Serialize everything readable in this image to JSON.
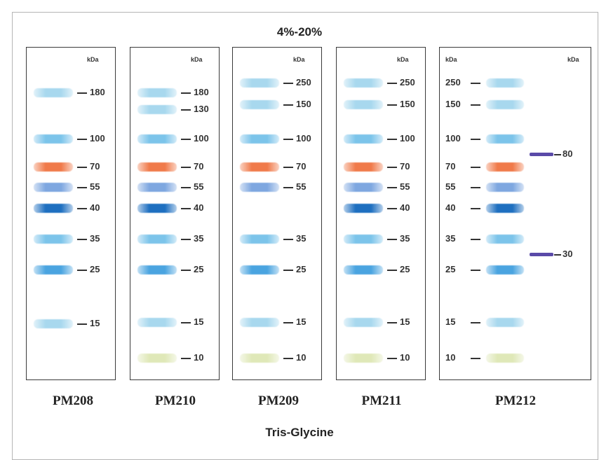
{
  "title": "4%-20%",
  "footer": "Tris-Glycine",
  "unit_label": "kDa",
  "colors": {
    "pale_blue": "#a8d8ee",
    "light_blue": "#7cc4ea",
    "mid_blue": "#4aa4e0",
    "dark_blue": "#1e6fc0",
    "periwinkle": "#7ea7e0",
    "orange": "#f07a4a",
    "yellow_green": "#dfe8b8",
    "purple": "#5a4aa8"
  },
  "panels": [
    {
      "name": "PM208",
      "bands": [
        {
          "kda": "180",
          "color": "pale_blue"
        },
        {
          "kda": "100",
          "color": "light_blue"
        },
        {
          "kda": "70",
          "color": "orange"
        },
        {
          "kda": "55",
          "color": "periwinkle"
        },
        {
          "kda": "40",
          "color": "dark_blue"
        },
        {
          "kda": "35",
          "color": "light_blue"
        },
        {
          "kda": "25",
          "color": "mid_blue"
        },
        {
          "kda": "15",
          "color": "pale_blue"
        }
      ]
    },
    {
      "name": "PM210",
      "bands": [
        {
          "kda": "180",
          "color": "pale_blue"
        },
        {
          "kda": "130",
          "color": "pale_blue"
        },
        {
          "kda": "100",
          "color": "light_blue"
        },
        {
          "kda": "70",
          "color": "orange"
        },
        {
          "kda": "55",
          "color": "periwinkle"
        },
        {
          "kda": "40",
          "color": "dark_blue"
        },
        {
          "kda": "35",
          "color": "light_blue"
        },
        {
          "kda": "25",
          "color": "mid_blue"
        },
        {
          "kda": "15",
          "color": "pale_blue"
        },
        {
          "kda": "10",
          "color": "yellow_green"
        }
      ]
    },
    {
      "name": "PM209",
      "bands": [
        {
          "kda": "250",
          "color": "pale_blue"
        },
        {
          "kda": "150",
          "color": "pale_blue"
        },
        {
          "kda": "100",
          "color": "light_blue"
        },
        {
          "kda": "70",
          "color": "orange"
        },
        {
          "kda": "55",
          "color": "periwinkle"
        },
        {
          "kda": "35",
          "color": "light_blue"
        },
        {
          "kda": "25",
          "color": "mid_blue"
        },
        {
          "kda": "15",
          "color": "pale_blue"
        },
        {
          "kda": "10",
          "color": "yellow_green"
        }
      ]
    },
    {
      "name": "PM211",
      "bands": [
        {
          "kda": "250",
          "color": "pale_blue"
        },
        {
          "kda": "150",
          "color": "pale_blue"
        },
        {
          "kda": "100",
          "color": "light_blue"
        },
        {
          "kda": "70",
          "color": "orange"
        },
        {
          "kda": "55",
          "color": "periwinkle"
        },
        {
          "kda": "40",
          "color": "dark_blue"
        },
        {
          "kda": "35",
          "color": "light_blue"
        },
        {
          "kda": "25",
          "color": "mid_blue"
        },
        {
          "kda": "15",
          "color": "pale_blue"
        },
        {
          "kda": "10",
          "color": "yellow_green"
        }
      ]
    },
    {
      "name": "PM212",
      "bands": [
        {
          "kda": "250",
          "color": "pale_blue"
        },
        {
          "kda": "150",
          "color": "pale_blue"
        },
        {
          "kda": "100",
          "color": "light_blue"
        },
        {
          "kda": "70",
          "color": "orange"
        },
        {
          "kda": "55",
          "color": "periwinkle"
        },
        {
          "kda": "40",
          "color": "dark_blue"
        },
        {
          "kda": "35",
          "color": "light_blue"
        },
        {
          "kda": "25",
          "color": "mid_blue"
        },
        {
          "kda": "15",
          "color": "pale_blue"
        },
        {
          "kda": "10",
          "color": "yellow_green"
        }
      ],
      "marker_bands": [
        {
          "kda": "80",
          "color": "purple"
        },
        {
          "kda": "30",
          "color": "purple"
        }
      ]
    }
  ]
}
